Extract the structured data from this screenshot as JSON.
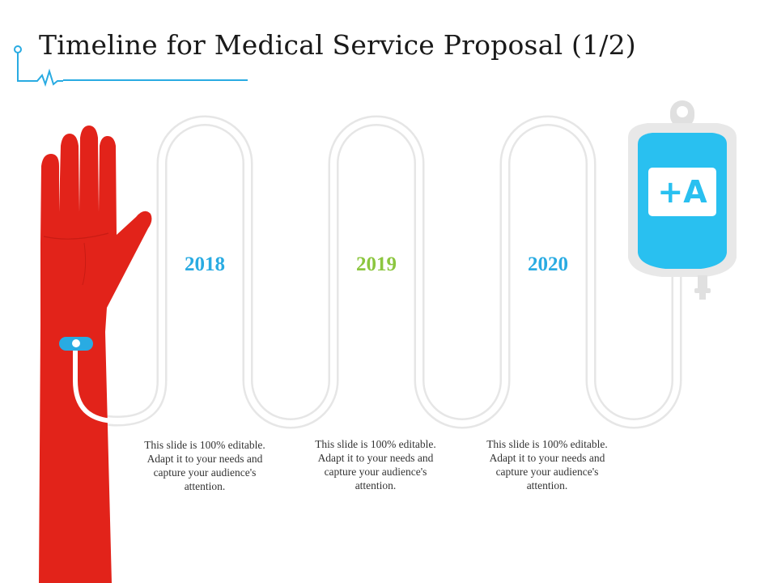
{
  "slide": {
    "title": "Timeline for Medical Service Proposal (1/2)"
  },
  "timeline": [
    {
      "year": "2018",
      "color": "#29abe2",
      "text": "This slide is 100% editable. Adapt it to your needs and capture your audience's attention."
    },
    {
      "year": "2019",
      "color": "#8cc63f",
      "text": "This slide is 100% editable. Adapt it to your needs and capture your audience's attention."
    },
    {
      "year": "2020",
      "color": "#29abe2",
      "text": "This slide is 100% editable. Adapt it to your needs and capture your audience's attention."
    }
  ],
  "iv_bag": {
    "label": "+A",
    "color": "#29c0f0"
  },
  "colors": {
    "arm": "#e2231a",
    "accent": "#29abe2",
    "tube": "#e6e6e6"
  },
  "icons": [
    "heartbeat-line-icon",
    "arm-icon",
    "iv-bag-icon"
  ]
}
